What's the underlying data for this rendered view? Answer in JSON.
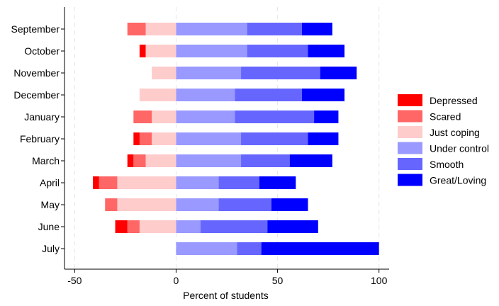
{
  "chart_data": {
    "type": "bar",
    "orientation": "horizontal",
    "stacked": "diverging",
    "title": "",
    "xlabel": "Percent of students",
    "ylabel": "",
    "xlim": [
      -55,
      105
    ],
    "xticks": [
      -50,
      0,
      50,
      100
    ],
    "grid": "vertical dashed",
    "legend_position": "right",
    "categories": [
      "September",
      "October",
      "November",
      "December",
      "January",
      "February",
      "March",
      "April",
      "May",
      "June",
      "July"
    ],
    "series": [
      {
        "name": "Depressed",
        "color": "#ff0000",
        "side": "negative",
        "values": [
          0,
          3,
          0,
          0,
          0,
          3,
          3,
          3,
          0,
          6,
          0
        ]
      },
      {
        "name": "Scared",
        "color": "#ff6666",
        "side": "negative",
        "values": [
          9,
          0,
          0,
          0,
          9,
          6,
          6,
          9,
          6,
          6,
          0
        ]
      },
      {
        "name": "Just coping",
        "color": "#ffcccc",
        "side": "negative",
        "values": [
          15,
          15,
          12,
          18,
          12,
          12,
          15,
          29,
          29,
          18,
          0
        ]
      },
      {
        "name": "Under control",
        "color": "#9999ff",
        "side": "positive",
        "values": [
          35,
          35,
          32,
          29,
          29,
          32,
          32,
          21,
          21,
          12,
          30
        ]
      },
      {
        "name": "Smooth",
        "color": "#6666ff",
        "side": "positive",
        "values": [
          27,
          30,
          39,
          33,
          39,
          33,
          24,
          20,
          26,
          33,
          12
        ]
      },
      {
        "name": "Great/Loving",
        "color": "#0000ff",
        "side": "positive",
        "values": [
          15,
          18,
          18,
          21,
          12,
          15,
          21,
          18,
          18,
          25,
          58
        ]
      }
    ]
  }
}
